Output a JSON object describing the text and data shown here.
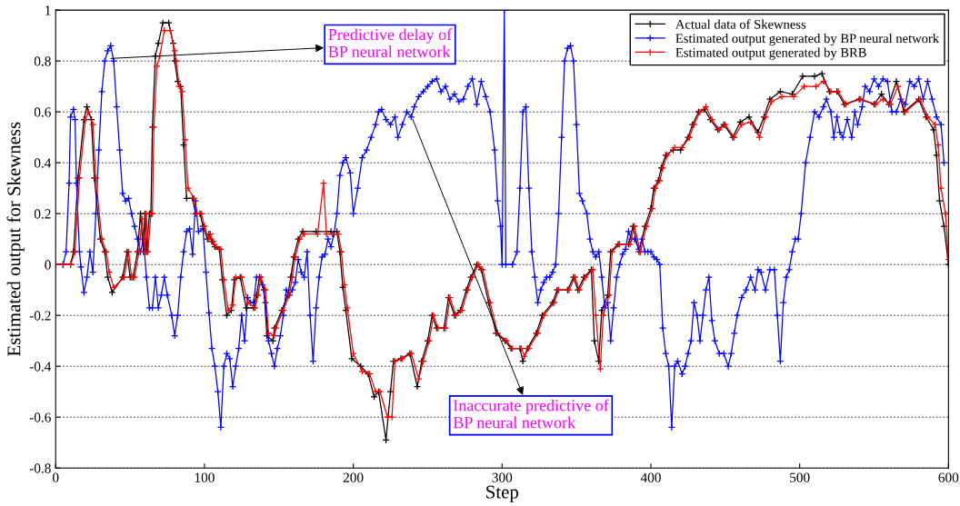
{
  "chart_data": {
    "type": "line",
    "xlabel": "Step",
    "ylabel": "Estimated output for Skewness",
    "xlim": [
      0,
      600
    ],
    "xticks": [
      0,
      100,
      200,
      300,
      400,
      500,
      600
    ],
    "ylim": [
      -0.8,
      1
    ],
    "yticks": [
      -0.8,
      -0.6,
      -0.4,
      -0.2,
      0,
      0.2,
      0.4,
      0.6,
      0.8,
      1
    ],
    "grid": "y",
    "legend": "top right",
    "marker": "cross",
    "line_style": "solid",
    "series": [
      {
        "name": "Actual data of Skewness",
        "color": "#000000",
        "x": [
          0,
          5,
          10,
          12,
          15,
          19,
          21,
          24,
          26,
          30,
          33,
          35,
          38,
          45,
          48,
          50,
          52,
          55,
          57,
          59,
          60,
          61,
          63,
          64,
          65,
          67,
          69,
          72,
          76,
          79,
          80,
          82,
          84,
          86,
          88,
          92,
          94,
          97,
          99,
          102,
          103,
          105,
          107,
          110,
          112,
          115,
          118,
          120,
          124,
          128,
          133,
          135,
          137,
          140,
          142,
          146,
          147,
          152,
          156,
          158,
          160,
          163,
          166,
          175,
          185,
          189,
          191,
          193,
          195,
          199,
          205,
          210,
          214,
          217,
          222,
          225,
          227,
          232,
          238,
          243,
          246,
          250,
          253,
          256,
          261,
          264,
          268,
          272,
          276,
          279,
          283,
          286,
          291,
          296,
          302,
          306,
          312,
          314,
          317,
          323,
          327,
          334,
          337,
          344,
          348,
          351,
          355,
          360,
          362,
          365,
          367,
          371,
          373,
          378,
          385,
          388,
          392,
          396,
          400,
          402,
          405,
          407,
          410,
          415,
          420,
          425,
          428,
          432,
          436,
          440,
          445,
          449,
          455,
          460,
          466,
          472,
          476,
          480,
          487,
          495,
          502,
          510,
          515,
          520,
          525,
          530,
          540,
          550,
          555,
          560,
          565,
          570,
          580,
          585,
          590,
          592,
          594,
          597,
          600
        ],
        "values": [
          0,
          0,
          0,
          0.05,
          0.34,
          0.57,
          0.62,
          0.57,
          0.34,
          0.1,
          0.05,
          -0.05,
          -0.11,
          -0.05,
          0.05,
          -0.05,
          -0.05,
          0.05,
          0.2,
          0.05,
          0.2,
          0.05,
          0.2,
          0.2,
          0.54,
          0.82,
          0.87,
          0.95,
          0.95,
          0.87,
          0.8,
          0.72,
          0.7,
          0.47,
          0.26,
          0.26,
          0.2,
          0.2,
          0.15,
          0.1,
          0.12,
          0.09,
          0.07,
          0.06,
          -0.06,
          -0.2,
          -0.18,
          -0.06,
          -0.05,
          -0.17,
          -0.17,
          -0.12,
          -0.05,
          -0.1,
          -0.28,
          -0.3,
          -0.25,
          -0.18,
          -0.12,
          -0.05,
          0.03,
          0.1,
          0.13,
          0.13,
          0.13,
          0.13,
          0.05,
          -0.09,
          -0.18,
          -0.37,
          -0.4,
          -0.43,
          -0.52,
          -0.5,
          -0.69,
          -0.5,
          -0.38,
          -0.37,
          -0.35,
          -0.48,
          -0.38,
          -0.3,
          -0.2,
          -0.25,
          -0.25,
          -0.13,
          -0.2,
          -0.18,
          -0.1,
          -0.05,
          0,
          -0.02,
          -0.15,
          -0.27,
          -0.3,
          -0.33,
          -0.33,
          -0.38,
          -0.33,
          -0.27,
          -0.2,
          -0.15,
          -0.1,
          -0.1,
          -0.05,
          -0.1,
          -0.05,
          -0.02,
          -0.3,
          -0.38,
          -0.18,
          -0.12,
          0.05,
          0.08,
          0.08,
          0.15,
          0.05,
          0.15,
          0.22,
          0.3,
          0.33,
          0.38,
          0.43,
          0.45,
          0.45,
          0.5,
          0.55,
          0.6,
          0.61,
          0.57,
          0.53,
          0.55,
          0.5,
          0.56,
          0.58,
          0.52,
          0.58,
          0.65,
          0.68,
          0.67,
          0.74,
          0.74,
          0.75,
          0.68,
          0.68,
          0.63,
          0.65,
          0.63,
          0.67,
          0.63,
          0.72,
          0.6,
          0.65,
          0.58,
          0.53,
          0.43,
          0.25,
          0.15,
          0
        ]
      },
      {
        "name": "Estimated output generated by BP neural network",
        "color": "#0000ff",
        "x": [
          0,
          5,
          7,
          9,
          10,
          12,
          13,
          14,
          16,
          17,
          19,
          21,
          23,
          25,
          27,
          29,
          31,
          33,
          35,
          37,
          39,
          41,
          43,
          45,
          47,
          49,
          51,
          53,
          55,
          57,
          59,
          61,
          63,
          65,
          67,
          69,
          71,
          73,
          75,
          78,
          80,
          82,
          84,
          86,
          88,
          90,
          92,
          94,
          96,
          99,
          101,
          103,
          105,
          107,
          109,
          111,
          113,
          115,
          117,
          119,
          121,
          123,
          125,
          127,
          129,
          131,
          133,
          135,
          137,
          139,
          141,
          143,
          145,
          147,
          149,
          151,
          153,
          155,
          157,
          159,
          161,
          163,
          165,
          167,
          169,
          171,
          173,
          175,
          177,
          179,
          181,
          183,
          185,
          187,
          189,
          191,
          193,
          195,
          198,
          200,
          203,
          206,
          209,
          212,
          215,
          217,
          219,
          222,
          225,
          228,
          230,
          233,
          236,
          239,
          241,
          244,
          247,
          250,
          253,
          256,
          259,
          262,
          265,
          268,
          271,
          274,
          277,
          280,
          283,
          286,
          289,
          292,
          295,
          297,
          299,
          300,
          301.5,
          302.5,
          307,
          310,
          312,
          314,
          316,
          318,
          320,
          322,
          324,
          326,
          328,
          330,
          332,
          334,
          336,
          338,
          340,
          342,
          344,
          346,
          348,
          350,
          352,
          354,
          357,
          359,
          361,
          363,
          365,
          367,
          369,
          371,
          373,
          375,
          377,
          379,
          381,
          383,
          385,
          387,
          389,
          392,
          394,
          396,
          398,
          400,
          402,
          404,
          406,
          408,
          410,
          412,
          414,
          416,
          418,
          421,
          423,
          425,
          427,
          429,
          431,
          433,
          435,
          437,
          439,
          441,
          443,
          446,
          449,
          452,
          454,
          456,
          458,
          461,
          464,
          467,
          470,
          472,
          474,
          477,
          480,
          483,
          485,
          487,
          489,
          491,
          493,
          495,
          497,
          499,
          501,
          504,
          507,
          510,
          513,
          516,
          518,
          521,
          523,
          525,
          527,
          529,
          532,
          535,
          537,
          539,
          542,
          544,
          547,
          550,
          553,
          556,
          559,
          562,
          565,
          568,
          571,
          574,
          577,
          580,
          583,
          586,
          589,
          592,
          595,
          597
        ],
        "values": [
          0,
          0,
          0.05,
          0.32,
          0.58,
          0.61,
          0.57,
          0.32,
          0.05,
          -0.01,
          -0.11,
          -0.05,
          0.05,
          -0.03,
          0.2,
          0.45,
          0.68,
          0.8,
          0.84,
          0.86,
          0.8,
          0.62,
          0.45,
          0.28,
          0.25,
          0.26,
          0.2,
          0.15,
          0.1,
          0.05,
          0.1,
          -0.05,
          -0.17,
          -0.17,
          -0.05,
          -0.17,
          -0.12,
          -0.05,
          -0.12,
          -0.2,
          -0.28,
          -0.2,
          -0.05,
          0.05,
          0.13,
          0.14,
          0.04,
          0.25,
          0.13,
          0.14,
          -0.03,
          -0.19,
          -0.33,
          -0.4,
          -0.5,
          -0.64,
          -0.4,
          -0.35,
          -0.37,
          -0.48,
          -0.4,
          -0.33,
          -0.2,
          -0.3,
          -0.13,
          -0.15,
          -0.15,
          -0.05,
          -0.05,
          -0.08,
          -0.15,
          -0.3,
          -0.35,
          -0.4,
          -0.33,
          -0.28,
          -0.2,
          -0.1,
          -0.12,
          -0.1,
          -0.07,
          0.02,
          -0.03,
          -0.05,
          0.05,
          -0.2,
          -0.38,
          -0.17,
          -0.05,
          0.03,
          0.04,
          0.1,
          0.07,
          0.12,
          0.2,
          0.35,
          0.4,
          0.42,
          0.36,
          0.2,
          0.3,
          0.42,
          0.45,
          0.5,
          0.55,
          0.6,
          0.61,
          0.57,
          0.55,
          0.58,
          0.5,
          0.55,
          0.6,
          0.58,
          0.62,
          0.66,
          0.68,
          0.7,
          0.72,
          0.73,
          0.68,
          0.7,
          0.65,
          0.67,
          0.64,
          0.65,
          0.7,
          0.73,
          0.63,
          0.72,
          0.66,
          0.6,
          0.45,
          0.25,
          0.15,
          0,
          1,
          0,
          0,
          0.05,
          0.3,
          0.6,
          0.62,
          0.3,
          0.05,
          -0.05,
          -0.15,
          -0.1,
          -0.07,
          -0.05,
          -0.05,
          -0.03,
          0,
          0.2,
          0.5,
          0.8,
          0.85,
          0.86,
          0.8,
          0.55,
          0.28,
          0.25,
          0.2,
          0.1,
          0.05,
          0.03,
          0.05,
          -0.05,
          -0.17,
          -0.15,
          -0.3,
          -0.17,
          -0.05,
          0,
          0.04,
          0.06,
          0.13,
          0.1,
          0.1,
          0.06,
          0.1,
          0.05,
          0.05,
          0.05,
          0.03,
          0.02,
          0,
          -0.25,
          -0.35,
          -0.4,
          -0.64,
          -0.4,
          -0.38,
          -0.43,
          -0.4,
          -0.35,
          -0.3,
          -0.15,
          -0.2,
          -0.3,
          -0.2,
          -0.1,
          -0.05,
          -0.22,
          -0.3,
          -0.35,
          -0.35,
          -0.4,
          -0.35,
          -0.27,
          -0.2,
          -0.13,
          -0.1,
          -0.05,
          -0.1,
          -0.02,
          -0.03,
          -0.1,
          -0.02,
          -0.02,
          -0.2,
          -0.38,
          -0.15,
          -0.05,
          -0.02,
          0.05,
          0.1,
          0.1,
          0.2,
          0.4,
          0.5,
          0.6,
          0.58,
          0.62,
          0.65,
          0.6,
          0.5,
          0.58,
          0.52,
          0.5,
          0.57,
          0.5,
          0.6,
          0.55,
          0.62,
          0.7,
          0.68,
          0.73,
          0.7,
          0.73,
          0.72,
          0.6,
          0.6,
          0.65,
          0.63,
          0.72,
          0.7,
          0.73,
          0.65,
          0.72,
          0.65,
          0.58,
          0.55,
          0.4
        ]
      },
      {
        "name": "Estimated output generated by BRB",
        "color": "#ff0000",
        "x": [
          0,
          5,
          10,
          13,
          16,
          20,
          22,
          25,
          27,
          31,
          34,
          36,
          39,
          46,
          49,
          51,
          53,
          56,
          58,
          60,
          61,
          62,
          64,
          65,
          66,
          68,
          70,
          73,
          77,
          80,
          81,
          83,
          85,
          87,
          89,
          93,
          95,
          98,
          100,
          103,
          104,
          106,
          108,
          111,
          113,
          116,
          119,
          121,
          125,
          129,
          134,
          136,
          138,
          141,
          143,
          147,
          148,
          153,
          157,
          159,
          161,
          164,
          167,
          176,
          180,
          182,
          186,
          190,
          192,
          194,
          196,
          200,
          206,
          211,
          215,
          218,
          223,
          226,
          228,
          233,
          239,
          244,
          247,
          251,
          254,
          257,
          262,
          265,
          269,
          273,
          277,
          280,
          284,
          287,
          292,
          297,
          303,
          307,
          313,
          315,
          318,
          324,
          328,
          335,
          338,
          345,
          349,
          352,
          356,
          361,
          363,
          366,
          368,
          372,
          374,
          379,
          386,
          389,
          393,
          397,
          401,
          403,
          406,
          408,
          411,
          416,
          421,
          426,
          429,
          433,
          437,
          441,
          446,
          450,
          456,
          461,
          467,
          473,
          477,
          481,
          488,
          496,
          503,
          511,
          516,
          521,
          526,
          531,
          541,
          551,
          556,
          561,
          566,
          571,
          581,
          586,
          591,
          593,
          595,
          598,
          600
        ],
        "values": [
          0,
          0,
          0,
          0.05,
          0.34,
          0.57,
          0.6,
          0.55,
          0.34,
          0.1,
          0.05,
          -0.03,
          -0.09,
          -0.05,
          0.05,
          -0.05,
          -0.05,
          0.05,
          0.18,
          0.05,
          0.2,
          0.05,
          0.2,
          0.2,
          0.54,
          0.78,
          0.82,
          0.92,
          0.92,
          0.84,
          0.8,
          0.7,
          0.68,
          0.49,
          0.3,
          0.26,
          0.2,
          0.2,
          0.15,
          0.1,
          0.12,
          0.09,
          0.07,
          0.06,
          -0.06,
          -0.18,
          -0.16,
          -0.05,
          -0.05,
          -0.15,
          -0.17,
          -0.12,
          -0.05,
          -0.1,
          -0.27,
          -0.28,
          -0.25,
          -0.18,
          -0.12,
          -0.05,
          0.03,
          0.1,
          0.12,
          0.12,
          0.32,
          0.12,
          0.12,
          0.12,
          0.05,
          -0.08,
          -0.17,
          -0.35,
          -0.42,
          -0.43,
          -0.5,
          -0.5,
          -0.6,
          -0.6,
          -0.38,
          -0.37,
          -0.35,
          -0.45,
          -0.38,
          -0.3,
          -0.2,
          -0.25,
          -0.25,
          -0.13,
          -0.2,
          -0.18,
          -0.1,
          -0.05,
          0,
          -0.02,
          -0.15,
          -0.27,
          -0.3,
          -0.33,
          -0.33,
          -0.36,
          -0.33,
          -0.27,
          -0.2,
          -0.15,
          -0.1,
          -0.1,
          -0.05,
          -0.1,
          -0.05,
          -0.02,
          -0.2,
          -0.41,
          -0.2,
          -0.12,
          0.05,
          0.08,
          0.08,
          0.15,
          0.05,
          0.15,
          0.22,
          0.3,
          0.33,
          0.38,
          0.43,
          0.46,
          0.46,
          0.5,
          0.55,
          0.6,
          0.62,
          0.57,
          0.53,
          0.55,
          0.5,
          0.55,
          0.56,
          0.5,
          0.58,
          0.64,
          0.66,
          0.66,
          0.7,
          0.7,
          0.72,
          0.68,
          0.68,
          0.63,
          0.65,
          0.63,
          0.65,
          0.63,
          0.7,
          0.6,
          0.65,
          0.58,
          0.55,
          0.47,
          0.3,
          0.2,
          0.02
        ]
      }
    ],
    "annotations": [
      {
        "text": "Predictive delay of\nBP neural network",
        "x": 37,
        "y": 0.81
      },
      {
        "text": "Inaccurate predictive of\nBP neural network",
        "x": 240,
        "y": 0.57
      }
    ]
  }
}
